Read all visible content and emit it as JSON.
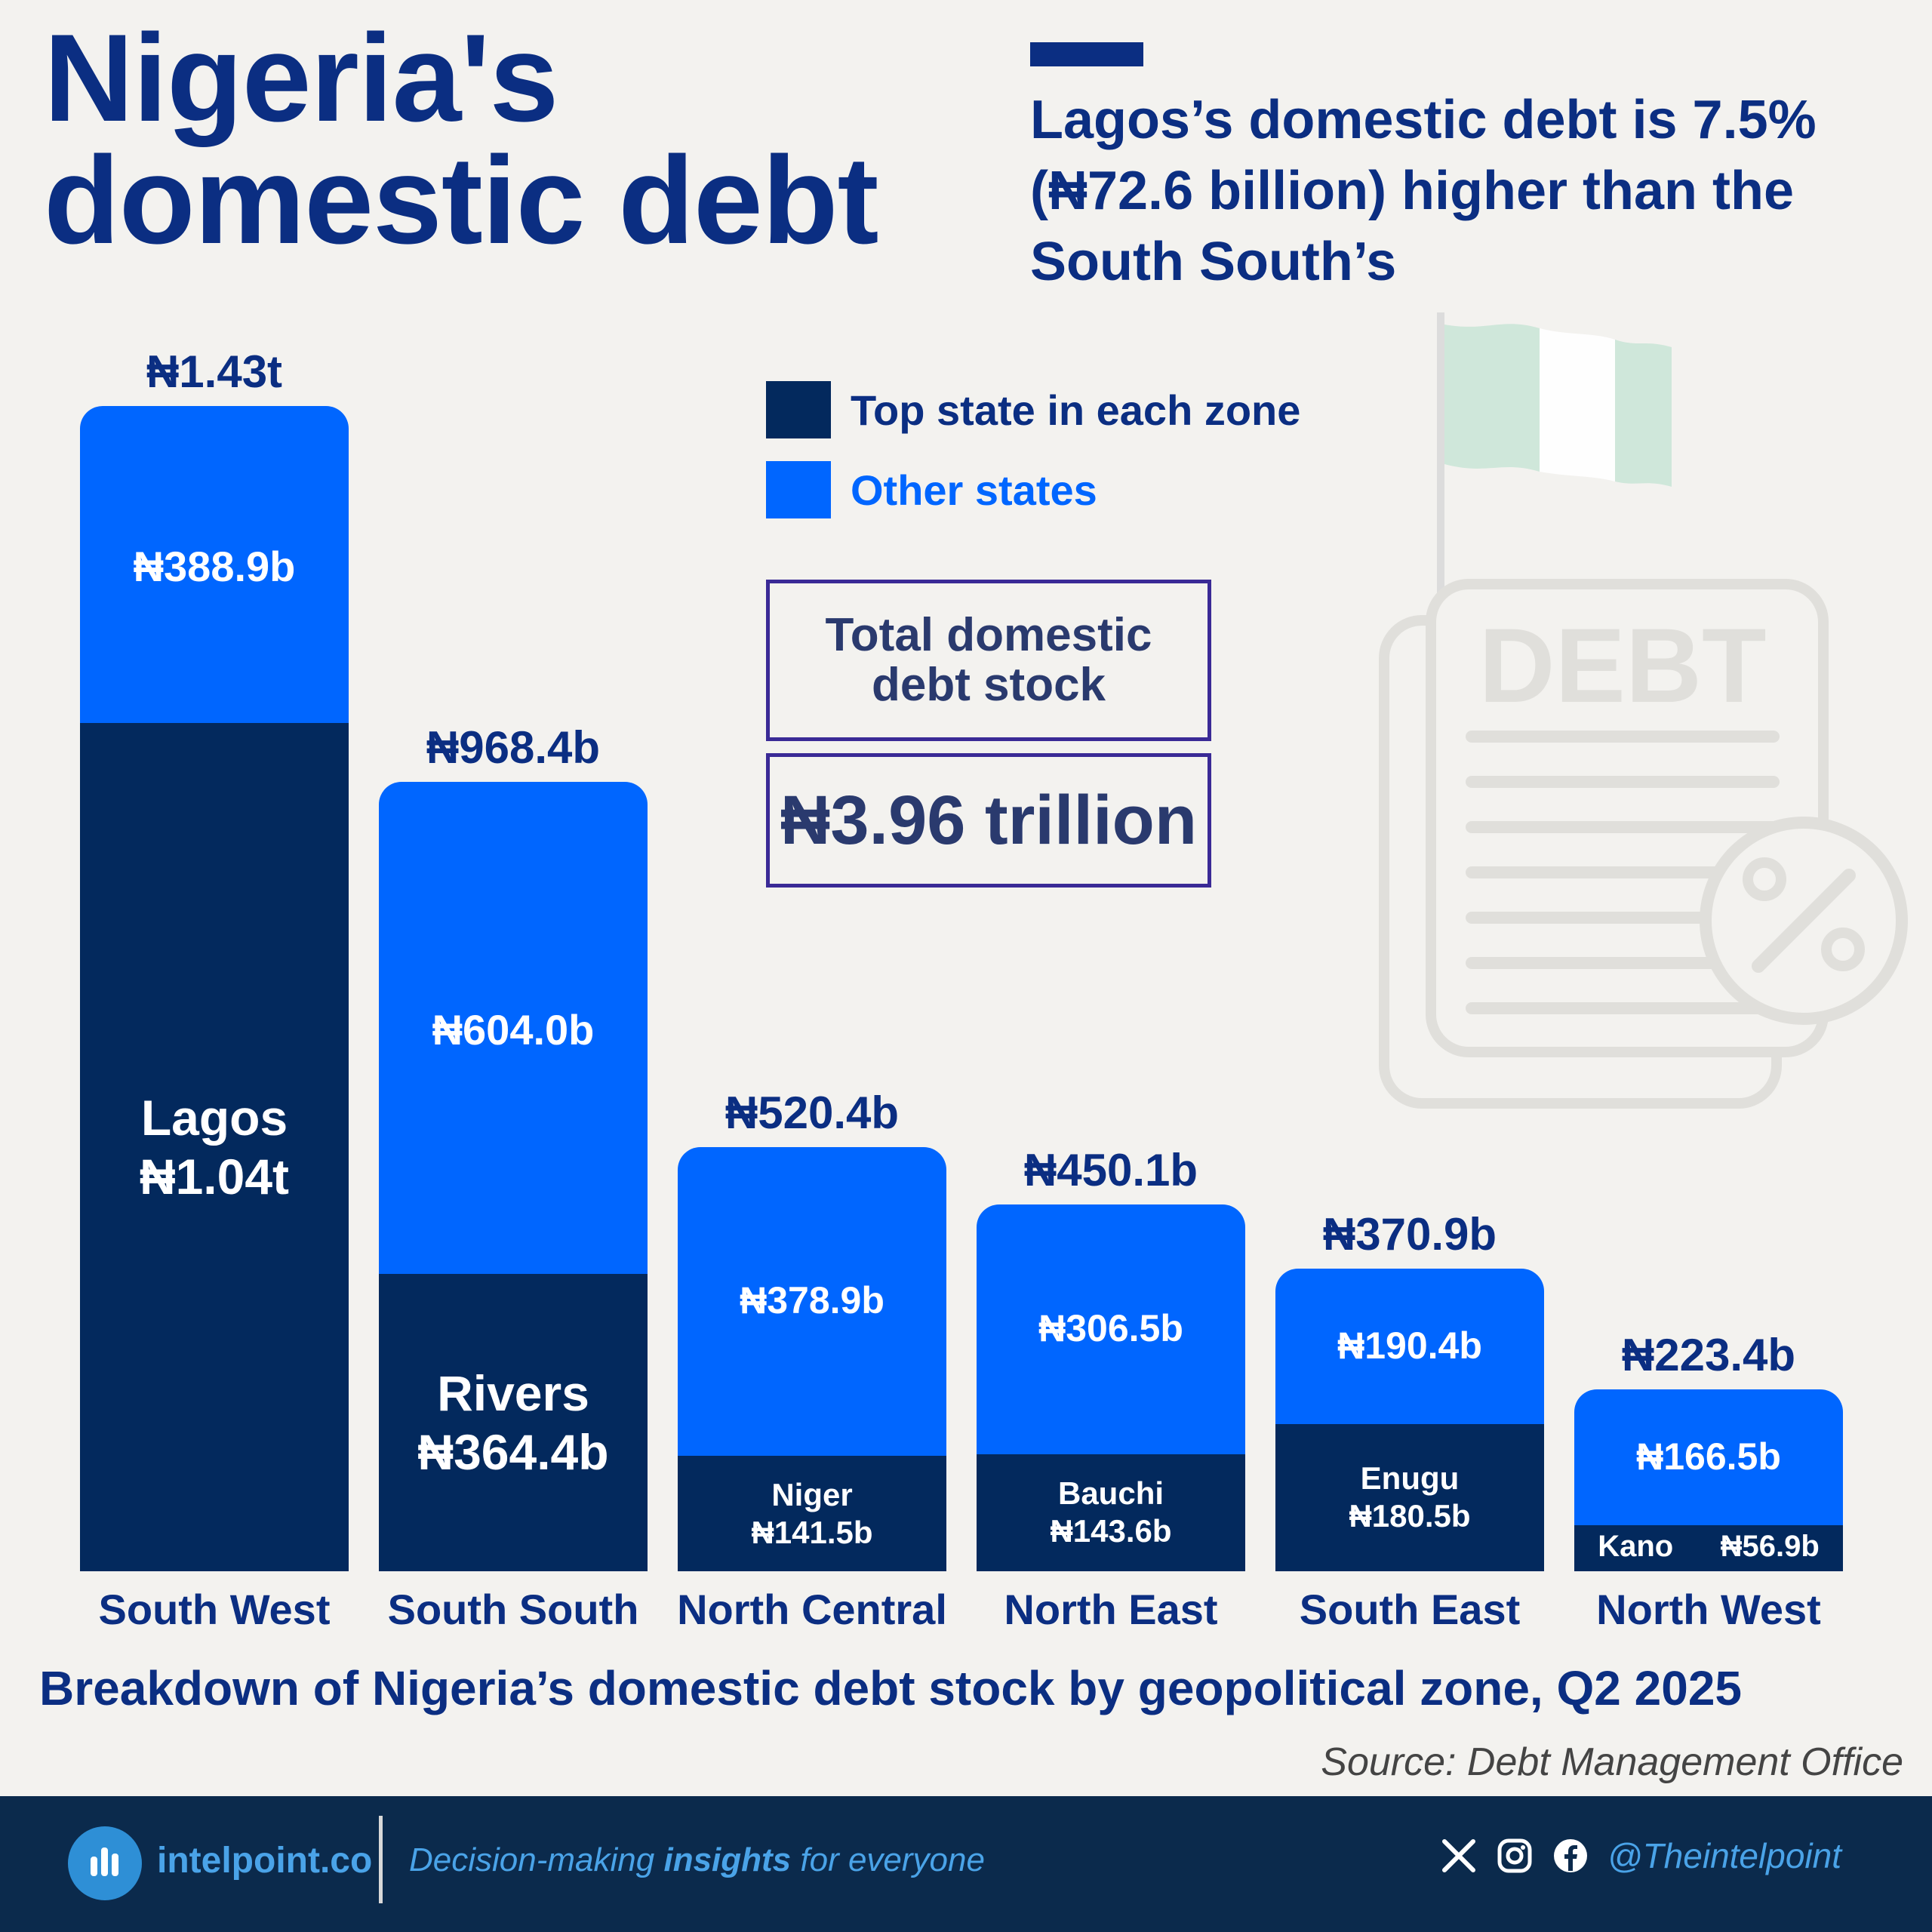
{
  "header": {
    "title_line1": "Nigeria's",
    "title_line2": "domestic debt",
    "headline": "Lagos’s domestic debt is 7.5% (₦72.6 billion) higher than the South South’s"
  },
  "legend": {
    "top_state_label": "Top state in each zone",
    "other_states_label": "Other states"
  },
  "total": {
    "label": "Total domestic debt stock",
    "value": "₦3.96 trillion"
  },
  "decor": {
    "debt_doc_word": "DEBT"
  },
  "colors": {
    "top_state": "#03295d",
    "other_states": "#0066ff",
    "text_primary": "#0b2e82"
  },
  "chart_data": {
    "type": "bar",
    "stacked": true,
    "unit": "₦ billion",
    "categories": [
      "South West",
      "South South",
      "North Central",
      "North East",
      "South East",
      "North West"
    ],
    "series": [
      {
        "name": "Top state in each zone",
        "values": [
          1040,
          364.4,
          141.5,
          143.6,
          180.5,
          56.9
        ]
      },
      {
        "name": "Other states",
        "values": [
          388.9,
          604.0,
          378.9,
          306.5,
          190.4,
          166.5
        ]
      }
    ],
    "totals": [
      1430,
      968.4,
      520.4,
      450.1,
      370.9,
      223.4
    ],
    "total_labels": [
      "₦1.43t",
      "₦968.4b",
      "₦520.4b",
      "₦450.1b",
      "₦370.9b",
      "₦223.4b"
    ],
    "other_labels": [
      "₦388.9b",
      "₦604.0b",
      "₦378.9b",
      "₦306.5b",
      "₦190.4b",
      "₦166.5b"
    ],
    "top_state_names": [
      "Lagos",
      "Rivers",
      "Niger",
      "Bauchi",
      "Enugu",
      "Kano"
    ],
    "top_state_labels": [
      "₦1.04t",
      "₦364.4b",
      "₦141.5b",
      "₦143.6b",
      "₦180.5b",
      "₦56.9b"
    ],
    "title": "Breakdown of Nigeria’s domestic debt stock by geopolitical zone, Q2 2025",
    "legend_position": "top-center"
  },
  "footer": {
    "source": "Source: Debt Management Office",
    "brand": "intelpoint.co",
    "tagline_pre": "Decision-making ",
    "tagline_bold": "insights",
    "tagline_post": " for everyone",
    "handle": "@Theintelpoint",
    "social_icons": [
      "x-icon",
      "instagram-icon",
      "facebook-icon"
    ]
  }
}
